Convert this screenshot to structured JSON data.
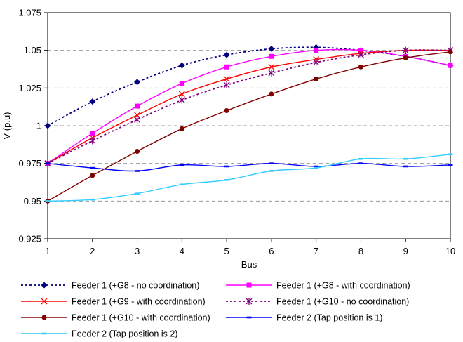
{
  "chart_data": {
    "type": "line",
    "xlabel": "Bus",
    "ylabel": "V (p.u)",
    "x": [
      1,
      2,
      3,
      4,
      5,
      6,
      7,
      8,
      9,
      10
    ],
    "xlim": [
      1,
      10
    ],
    "ylim": [
      0.925,
      1.075
    ],
    "x_ticks": [
      "1",
      "2",
      "3",
      "4",
      "5",
      "6",
      "7",
      "8",
      "9",
      "10"
    ],
    "y_ticks": [
      "0.925",
      "0.95",
      "0.975",
      "1",
      "1.025",
      "1.05",
      "1.075"
    ],
    "grid": "horizontal dashed",
    "legend_position": "bottom",
    "series": [
      {
        "name": "Feeder 1 (+G8 - no coordination)",
        "color": "#000080",
        "marker": "diamond",
        "dash": "dotted",
        "values": [
          1.0,
          1.016,
          1.029,
          1.04,
          1.047,
          1.051,
          1.052,
          1.05,
          1.046,
          1.04
        ]
      },
      {
        "name": "Feeder 1 (+G8 - with coordination)",
        "color": "#ff00ff",
        "marker": "square",
        "dash": "solid",
        "values": [
          0.975,
          0.995,
          1.013,
          1.028,
          1.039,
          1.046,
          1.05,
          1.05,
          1.046,
          1.04
        ]
      },
      {
        "name": "Feeder 1 (+G9 - with coordination)",
        "color": "#ff0000",
        "marker": "x",
        "dash": "solid",
        "values": [
          0.975,
          0.992,
          1.007,
          1.021,
          1.031,
          1.039,
          1.044,
          1.048,
          1.05,
          1.05
        ]
      },
      {
        "name": "Feeder 1 (+G10 - no coordination)",
        "color": "#800080",
        "marker": "star",
        "dash": "dotted",
        "values": [
          0.975,
          0.99,
          1.004,
          1.017,
          1.027,
          1.035,
          1.042,
          1.047,
          1.05,
          1.05
        ]
      },
      {
        "name": "Feeder 1 (+G10 - with coordination)",
        "color": "#800000",
        "marker": "circle",
        "dash": "solid",
        "values": [
          0.95,
          0.967,
          0.983,
          0.998,
          1.01,
          1.021,
          1.031,
          1.039,
          1.045,
          1.049
        ]
      },
      {
        "name": "Feeder 2 (Tap position is 1)",
        "color": "#0000ff",
        "marker": "bar",
        "dash": "solid",
        "values": [
          0.975,
          0.972,
          0.97,
          0.974,
          0.973,
          0.975,
          0.973,
          0.975,
          0.973,
          0.974
        ]
      },
      {
        "name": "Feeder 2 (Tap position is 2)",
        "color": "#33ccff",
        "marker": "bar",
        "dash": "solid",
        "values": [
          0.95,
          0.951,
          0.955,
          0.961,
          0.964,
          0.97,
          0.972,
          0.978,
          0.978,
          0.981
        ]
      }
    ]
  }
}
